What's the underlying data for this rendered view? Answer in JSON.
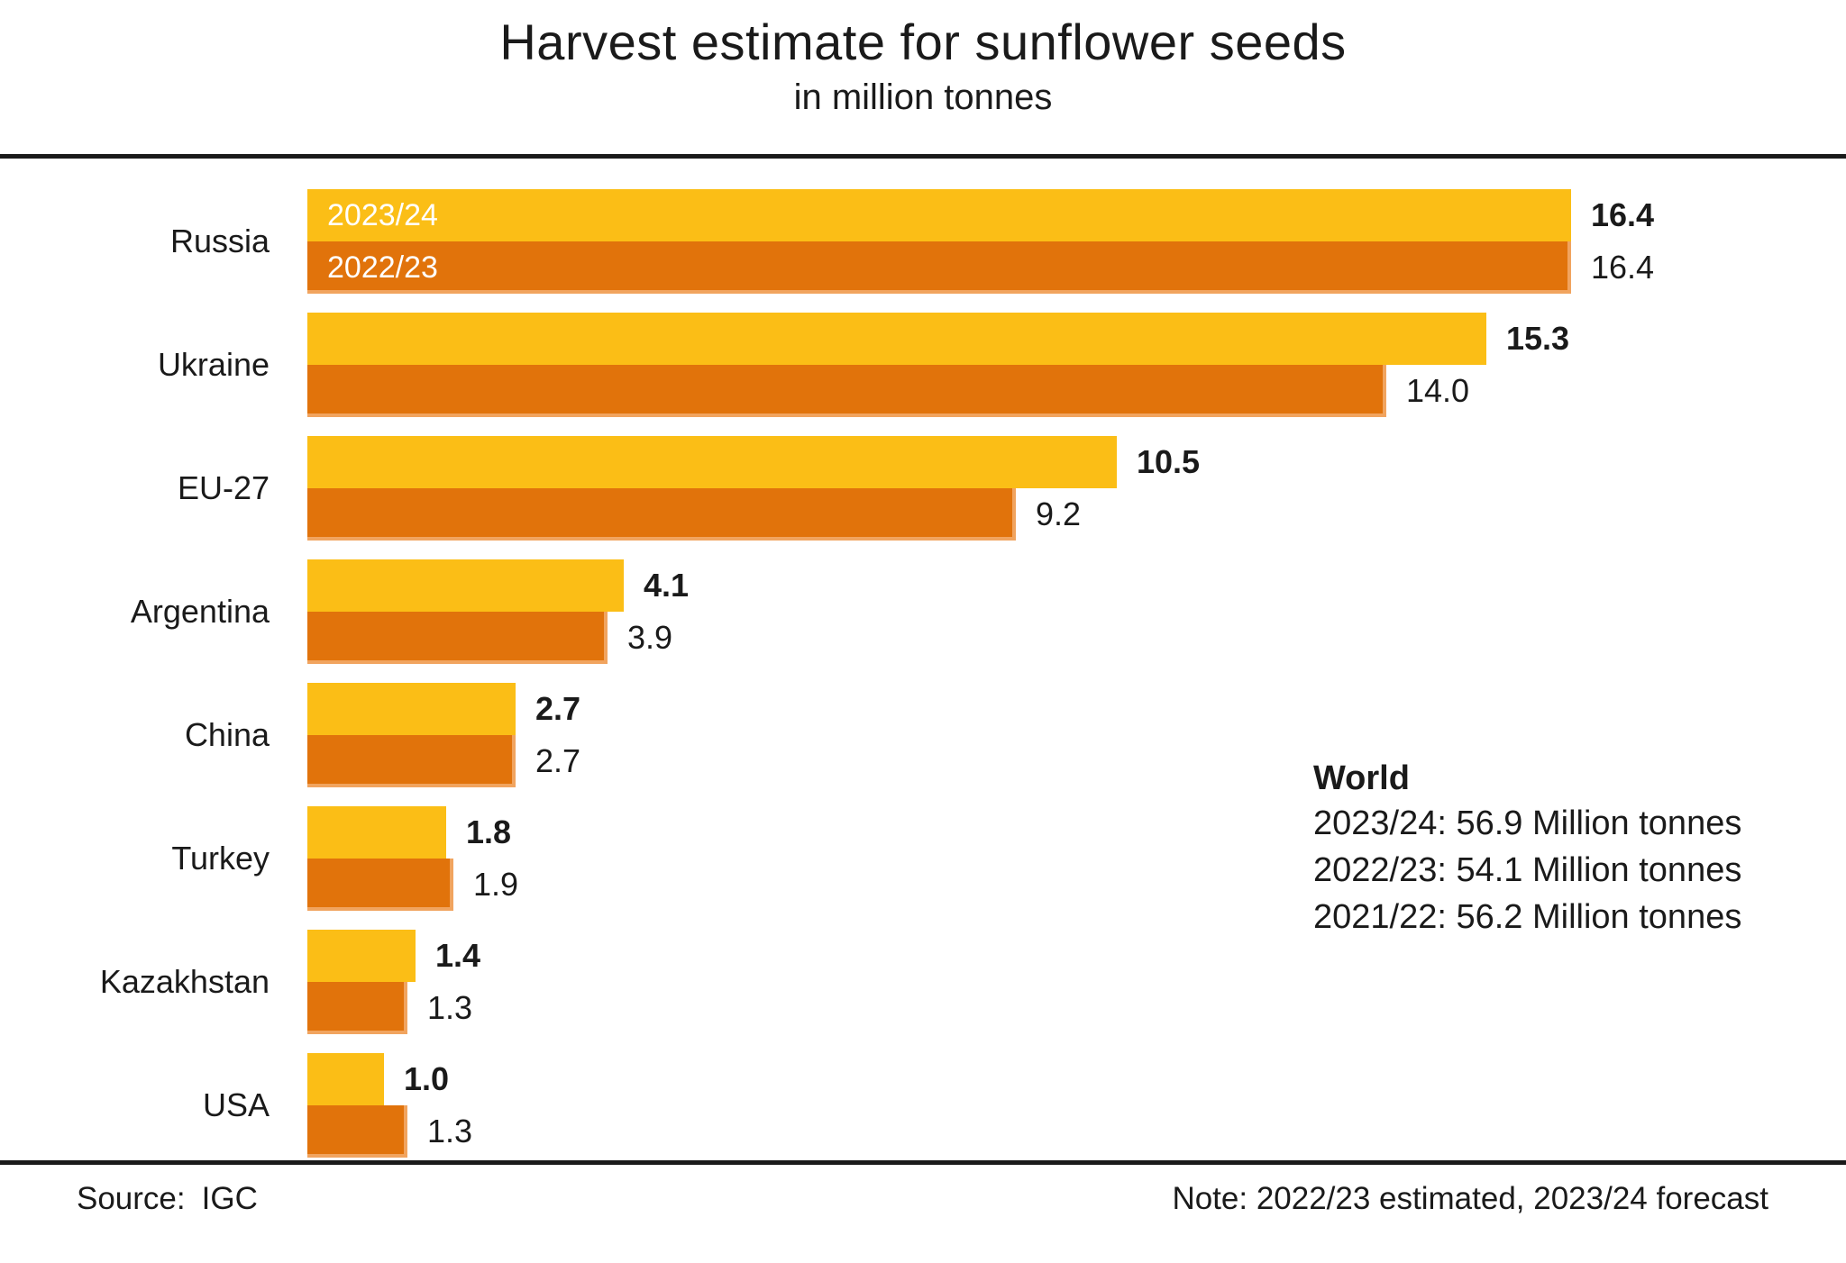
{
  "title": "Harvest estimate for sunflower seeds",
  "subtitle": "in million tonnes",
  "source": {
    "label": "Source:",
    "value": "IGC"
  },
  "note": "Note: 2022/23 estimated, 2023/24 forecast",
  "colors": {
    "series_2023_24": "#FBBE16",
    "series_2022_23": "#E1730B",
    "bar_edge_highlight": "#F1A45F",
    "text": "#1A1A1A",
    "inbar_label": "#FFFFFF"
  },
  "chart_data": {
    "type": "bar",
    "orientation": "horizontal",
    "unit": "million tonnes",
    "title": "Harvest estimate for sunflower seeds",
    "subtitle": "in million tonnes",
    "xlim": [
      0,
      16.4
    ],
    "grid": false,
    "legend_position": "inside-first-bars",
    "categories": [
      "Russia",
      "Ukraine",
      "EU-27",
      "Argentina",
      "China",
      "Turkey",
      "Kazakhstan",
      "USA"
    ],
    "series": [
      {
        "name": "2023/24",
        "values": [
          16.4,
          15.3,
          10.5,
          4.1,
          2.7,
          1.8,
          1.4,
          1.0
        ]
      },
      {
        "name": "2022/23",
        "values": [
          16.4,
          14.0,
          9.2,
          3.9,
          2.7,
          1.9,
          1.3,
          1.3
        ]
      }
    ],
    "annotation": {
      "title": "World",
      "lines": [
        "2023/24: 56.9 Million tonnes",
        "2022/23: 54.1 Million tonnes",
        "2021/22: 56.2 Million tonnes"
      ]
    }
  }
}
